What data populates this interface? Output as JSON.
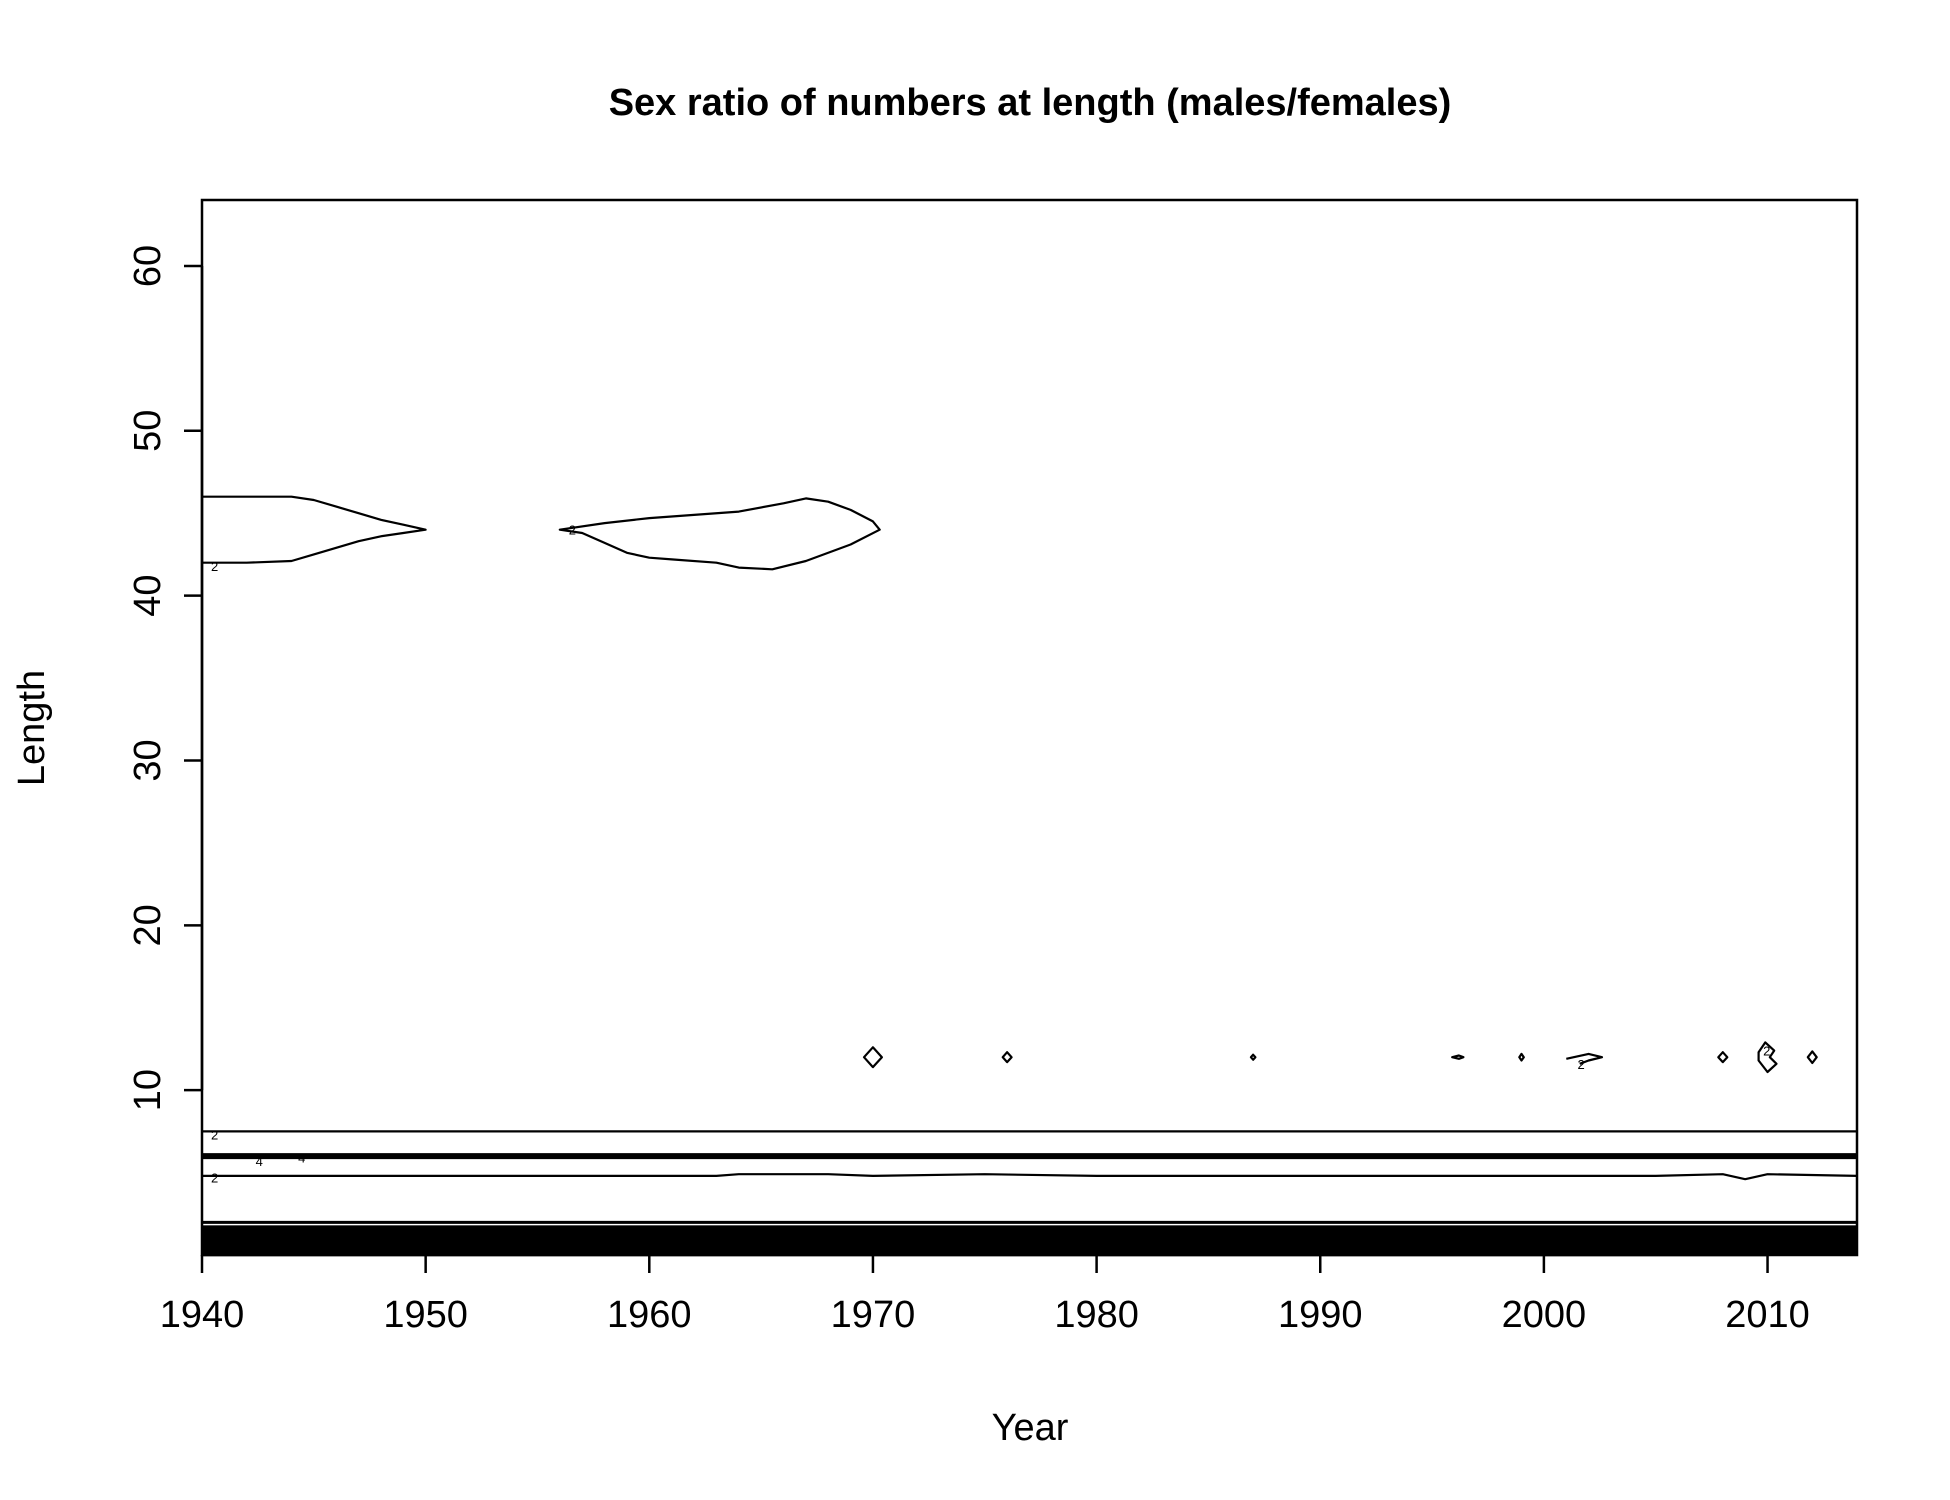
{
  "chart_data": {
    "type": "contour",
    "title": "Sex ratio of numbers at length (males/females)",
    "xlabel": "Year",
    "ylabel": "Length",
    "xlim": [
      1940,
      2014
    ],
    "ylim": [
      0,
      64
    ],
    "xticks": [
      1940,
      1950,
      1960,
      1970,
      1980,
      1990,
      2000,
      2010
    ],
    "yticks": [
      10,
      20,
      30,
      40,
      50,
      60
    ],
    "grid": false,
    "legend": "none",
    "contours": [
      {
        "name": "upper-lobe-early",
        "level": 2,
        "closed": false,
        "points": [
          [
            1940,
            46
          ],
          [
            1944,
            46
          ],
          [
            1945,
            45.8
          ],
          [
            1946,
            45.4
          ],
          [
            1947,
            45
          ],
          [
            1948,
            44.6
          ],
          [
            1949,
            44.3
          ],
          [
            1950,
            44
          ],
          [
            1949,
            43.8
          ],
          [
            1948,
            43.6
          ],
          [
            1947,
            43.3
          ],
          [
            1946,
            42.9
          ],
          [
            1945,
            42.5
          ],
          [
            1944,
            42.1
          ],
          [
            1942,
            42
          ],
          [
            1940,
            42
          ]
        ]
      },
      {
        "name": "upper-lobe-mid",
        "level": 2,
        "closed": true,
        "points": [
          [
            1956,
            44
          ],
          [
            1958,
            44.4
          ],
          [
            1960,
            44.7
          ],
          [
            1962,
            44.9
          ],
          [
            1964,
            45.1
          ],
          [
            1966,
            45.6
          ],
          [
            1967,
            45.9
          ],
          [
            1968,
            45.7
          ],
          [
            1969,
            45.2
          ],
          [
            1970,
            44.5
          ],
          [
            1970.3,
            44
          ],
          [
            1969,
            43.1
          ],
          [
            1967,
            42.1
          ],
          [
            1965.5,
            41.6
          ],
          [
            1964,
            41.7
          ],
          [
            1963,
            42
          ],
          [
            1961,
            42.2
          ],
          [
            1960,
            42.3
          ],
          [
            1959,
            42.6
          ],
          [
            1958,
            43.2
          ],
          [
            1957,
            43.8
          ],
          [
            1956,
            44
          ]
        ]
      },
      {
        "name": "ring-1970",
        "level": 2,
        "closed": true,
        "points": [
          [
            1969.6,
            12
          ],
          [
            1970,
            12.6
          ],
          [
            1970.4,
            12
          ],
          [
            1970,
            11.4
          ],
          [
            1969.6,
            12
          ]
        ]
      },
      {
        "name": "ring-1976",
        "level": 2,
        "closed": true,
        "points": [
          [
            1975.8,
            12
          ],
          [
            1976,
            12.3
          ],
          [
            1976.2,
            12
          ],
          [
            1976,
            11.7
          ],
          [
            1975.8,
            12
          ]
        ]
      },
      {
        "name": "ring-1987",
        "level": 2,
        "closed": true,
        "points": [
          [
            1986.9,
            12
          ],
          [
            1987,
            12.15
          ],
          [
            1987.1,
            12
          ],
          [
            1987,
            11.85
          ],
          [
            1986.9,
            12
          ]
        ]
      },
      {
        "name": "ring-1996",
        "level": 2,
        "closed": true,
        "points": [
          [
            1995.9,
            12
          ],
          [
            1996.2,
            12.1
          ],
          [
            1996.4,
            12
          ],
          [
            1996.2,
            11.9
          ],
          [
            1995.9,
            12
          ]
        ]
      },
      {
        "name": "ring-1999",
        "level": 2,
        "closed": true,
        "points": [
          [
            1998.9,
            12
          ],
          [
            1999,
            12.2
          ],
          [
            1999.1,
            12
          ],
          [
            1999,
            11.8
          ],
          [
            1998.9,
            12
          ]
        ]
      },
      {
        "name": "ring-2002",
        "level": 2,
        "closed": false,
        "points": [
          [
            2001,
            11.9
          ],
          [
            2002,
            12.2
          ],
          [
            2002.6,
            12
          ],
          [
            2002,
            11.8
          ],
          [
            2001.6,
            11.6
          ]
        ]
      },
      {
        "name": "ring-2008",
        "level": 2,
        "closed": true,
        "points": [
          [
            2007.8,
            12
          ],
          [
            2008,
            12.3
          ],
          [
            2008.2,
            12
          ],
          [
            2008,
            11.7
          ],
          [
            2007.8,
            12
          ]
        ]
      },
      {
        "name": "ring-2010",
        "level": 2,
        "closed": true,
        "points": [
          [
            2009.6,
            12.3
          ],
          [
            2009.9,
            12.9
          ],
          [
            2010.3,
            12.4
          ],
          [
            2010.1,
            12
          ],
          [
            2010.4,
            11.6
          ],
          [
            2010,
            11.1
          ],
          [
            2009.6,
            11.8
          ],
          [
            2009.6,
            12.3
          ]
        ]
      },
      {
        "name": "ring-2012",
        "level": 2,
        "closed": true,
        "points": [
          [
            2011.8,
            12
          ],
          [
            2012,
            12.35
          ],
          [
            2012.2,
            12
          ],
          [
            2012,
            11.65
          ],
          [
            2011.8,
            12
          ]
        ]
      },
      {
        "name": "band-7.5",
        "level": 2,
        "closed": false,
        "points": [
          [
            1940,
            7.5
          ],
          [
            2014,
            7.5
          ]
        ]
      },
      {
        "name": "band-6",
        "level": 4,
        "closed": false,
        "heavy": true,
        "points": [
          [
            1940,
            6
          ],
          [
            2014,
            6
          ]
        ]
      },
      {
        "name": "band-4.8",
        "level": 2,
        "closed": false,
        "points": [
          [
            1940,
            4.8
          ],
          [
            1963,
            4.8
          ],
          [
            1964,
            4.9
          ],
          [
            1968,
            4.9
          ],
          [
            1970,
            4.8
          ],
          [
            1975,
            4.9
          ],
          [
            1980,
            4.8
          ],
          [
            1990,
            4.8
          ],
          [
            2000,
            4.8
          ],
          [
            2005,
            4.8
          ],
          [
            2008,
            4.9
          ],
          [
            2009,
            4.6
          ],
          [
            2010,
            4.9
          ],
          [
            2014,
            4.8
          ]
        ]
      }
    ],
    "contour_labels": [
      {
        "text": "2",
        "x": 1940.4,
        "y": 41.8
      },
      {
        "text": "2",
        "x": 1956.4,
        "y": 44.0
      },
      {
        "text": "2",
        "x": 1940.4,
        "y": 7.3
      },
      {
        "text": "4",
        "x": 1942.4,
        "y": 5.7
      },
      {
        "text": "4",
        "x": 1944.3,
        "y": 5.9
      },
      {
        "text": "2",
        "x": 1940.4,
        "y": 4.7
      },
      {
        "text": "2",
        "x": 1940.4,
        "y": 1.5
      },
      {
        "text": "2",
        "x": 2001.5,
        "y": 11.6
      },
      {
        "text": "2",
        "x": 2009.8,
        "y": 12.4
      }
    ],
    "bottom_band": {
      "from": 0,
      "to": 1.8,
      "line_at": 1.8
    }
  }
}
